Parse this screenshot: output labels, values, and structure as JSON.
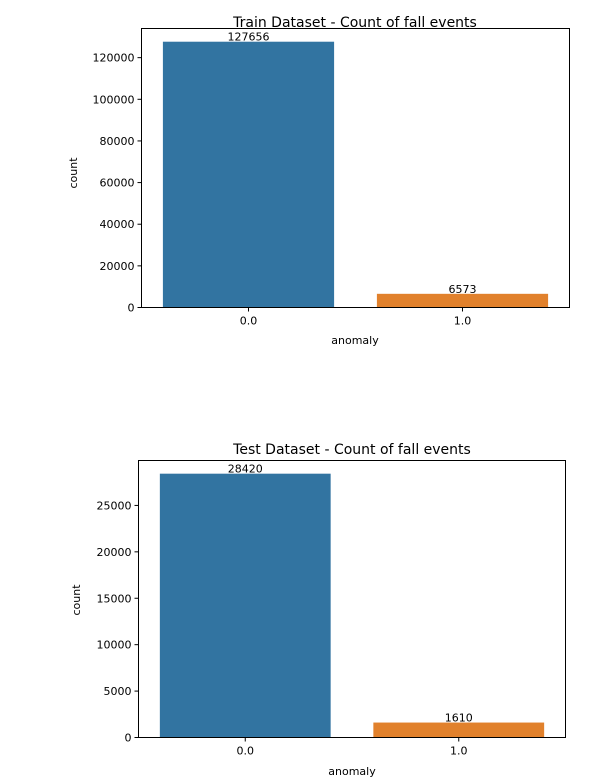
{
  "chart_data": [
    {
      "type": "bar",
      "title": "Train Dataset - Count of fall events",
      "xlabel": "anomaly",
      "ylabel": "count",
      "categories": [
        "0.0",
        "1.0"
      ],
      "values": [
        127656,
        6573
      ],
      "data_labels": [
        "127656",
        "6573"
      ],
      "ylim": [
        0,
        134000
      ],
      "yticks": [
        0,
        20000,
        40000,
        60000,
        80000,
        100000,
        120000
      ],
      "ytick_labels": [
        "0",
        "20000",
        "40000",
        "60000",
        "80000",
        "100000",
        "120000"
      ],
      "colors": [
        "#3274a1",
        "#e1812c"
      ],
      "grid": false
    },
    {
      "type": "bar",
      "title": "Test Dataset - Count of fall events",
      "xlabel": "anomaly",
      "ylabel": "count",
      "categories": [
        "0.0",
        "1.0"
      ],
      "values": [
        28420,
        1610
      ],
      "data_labels": [
        "28420",
        "1610"
      ],
      "ylim": [
        0,
        29840
      ],
      "yticks": [
        0,
        5000,
        10000,
        15000,
        20000,
        25000
      ],
      "ytick_labels": [
        "0",
        "5000",
        "10000",
        "15000",
        "20000",
        "25000"
      ],
      "colors": [
        "#3274a1",
        "#e1812c"
      ],
      "grid": false
    }
  ]
}
